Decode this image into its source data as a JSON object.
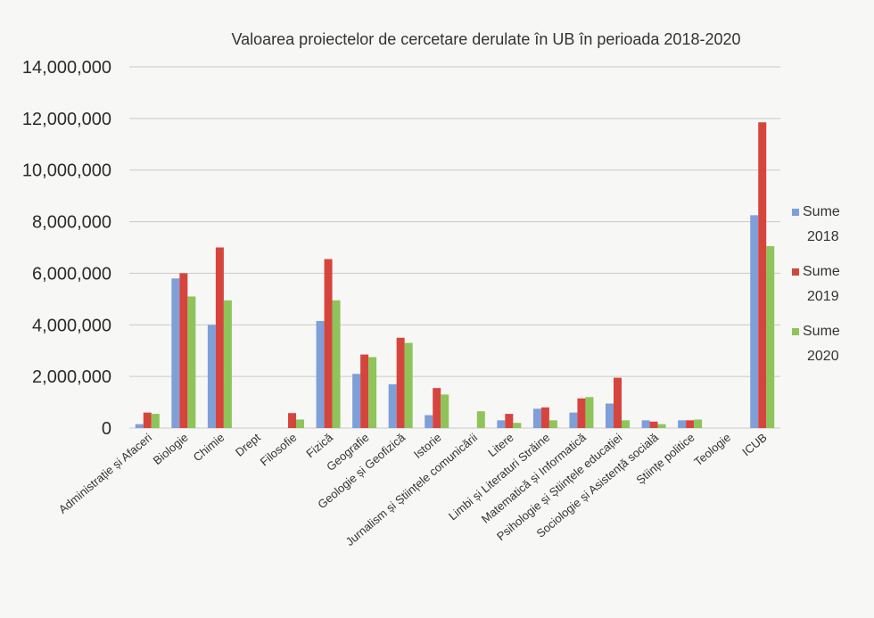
{
  "chart_data": {
    "type": "bar",
    "title": "Valoarea proiectelor de cercetare derulate în UB în perioada 2018-2020",
    "xlabel": "",
    "ylabel": "",
    "ylim": [
      0,
      14000000
    ],
    "yticks": [
      0,
      2000000,
      4000000,
      6000000,
      8000000,
      10000000,
      12000000,
      14000000
    ],
    "ytick_labels": [
      "0",
      "2,000,000",
      "4,000,000",
      "6,000,000",
      "8,000,000",
      "10,000,000",
      "12,000,000",
      "14,000,000"
    ],
    "grid": true,
    "legend_position": "right",
    "categories": [
      "Administrație și Afaceri",
      "Biologie",
      "Chimie",
      "Drept",
      "Filosofie",
      "Fizică",
      "Geografie",
      "Geologie și Geofizică",
      "Istorie",
      "Jurnalism și Științele comunicării",
      "Litere",
      "Limbi și Literaturi Străine",
      "Matematică și Informatică",
      "Psihologie și Științele educației",
      "Sociologie și Asistență socială",
      "Științe politice",
      "Teologie",
      "ICUB"
    ],
    "series": [
      {
        "name": "Sume 2018",
        "color": "#7f9fd8",
        "values": [
          150000,
          5800000,
          4000000,
          0,
          0,
          4150000,
          2100000,
          1700000,
          500000,
          0,
          300000,
          750000,
          600000,
          950000,
          300000,
          300000,
          0,
          8250000
        ]
      },
      {
        "name": "Sume 2019",
        "color": "#d6453d",
        "values": [
          600000,
          6000000,
          7000000,
          0,
          580000,
          6550000,
          2850000,
          3500000,
          1550000,
          0,
          550000,
          800000,
          1150000,
          1950000,
          250000,
          300000,
          0,
          11850000
        ]
      },
      {
        "name": "Sume 2020",
        "color": "#8ec45a",
        "values": [
          550000,
          5100000,
          4950000,
          0,
          330000,
          4950000,
          2750000,
          3300000,
          1300000,
          650000,
          200000,
          300000,
          1200000,
          300000,
          150000,
          330000,
          0,
          7050000
        ]
      }
    ]
  }
}
